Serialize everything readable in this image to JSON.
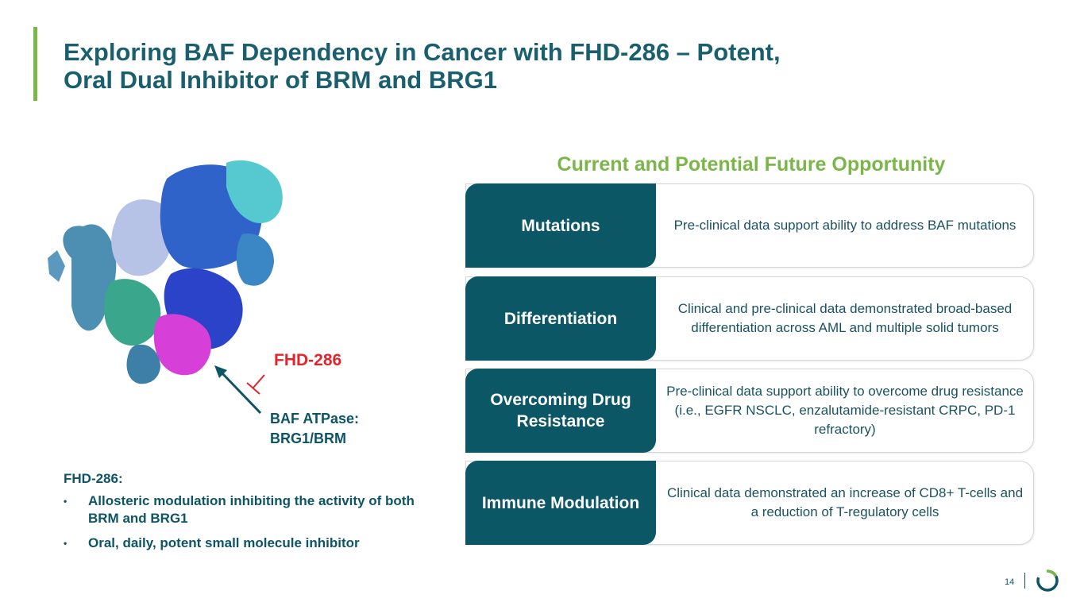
{
  "title": {
    "line1": "Exploring BAF Dependency in Cancer with FHD-286 – Potent,",
    "line2": "Oral Dual Inhibitor of BRM and BRG1"
  },
  "figure": {
    "drug_label": "FHD-286",
    "target_line1": "BAF ATPase:",
    "target_line2": "BRG1/BRM"
  },
  "summary": {
    "heading": "FHD-286:",
    "bullets": [
      "Allosteric modulation inhibiting the activity of both BRM and BRG1",
      "Oral, daily, potent small molecule inhibitor"
    ]
  },
  "opportunity": {
    "heading": "Current and Potential Future Opportunity",
    "rows": [
      {
        "label": "Mutations",
        "description": "Pre-clinical data support ability to address BAF mutations"
      },
      {
        "label": "Differentiation",
        "description": "Clinical and pre-clinical data demonstrated broad-based differentiation across AML and multiple solid tumors"
      },
      {
        "label": "Overcoming Drug Resistance",
        "description": "Pre-clinical data support ability to overcome drug resistance (i.e., EGFR NSCLC, enzalutamide-resistant CRPC, PD-1 refractory)"
      },
      {
        "label": "Immune Modulation",
        "description": "Clinical data demonstrated an increase of CD8+ T-cells and a reduction of T-regulatory cells"
      }
    ]
  },
  "footer": {
    "page_number": "14"
  },
  "colors": {
    "accent_green": "#7ab648",
    "teal_dark": "#0b5766",
    "drug_red": "#e0262b"
  }
}
